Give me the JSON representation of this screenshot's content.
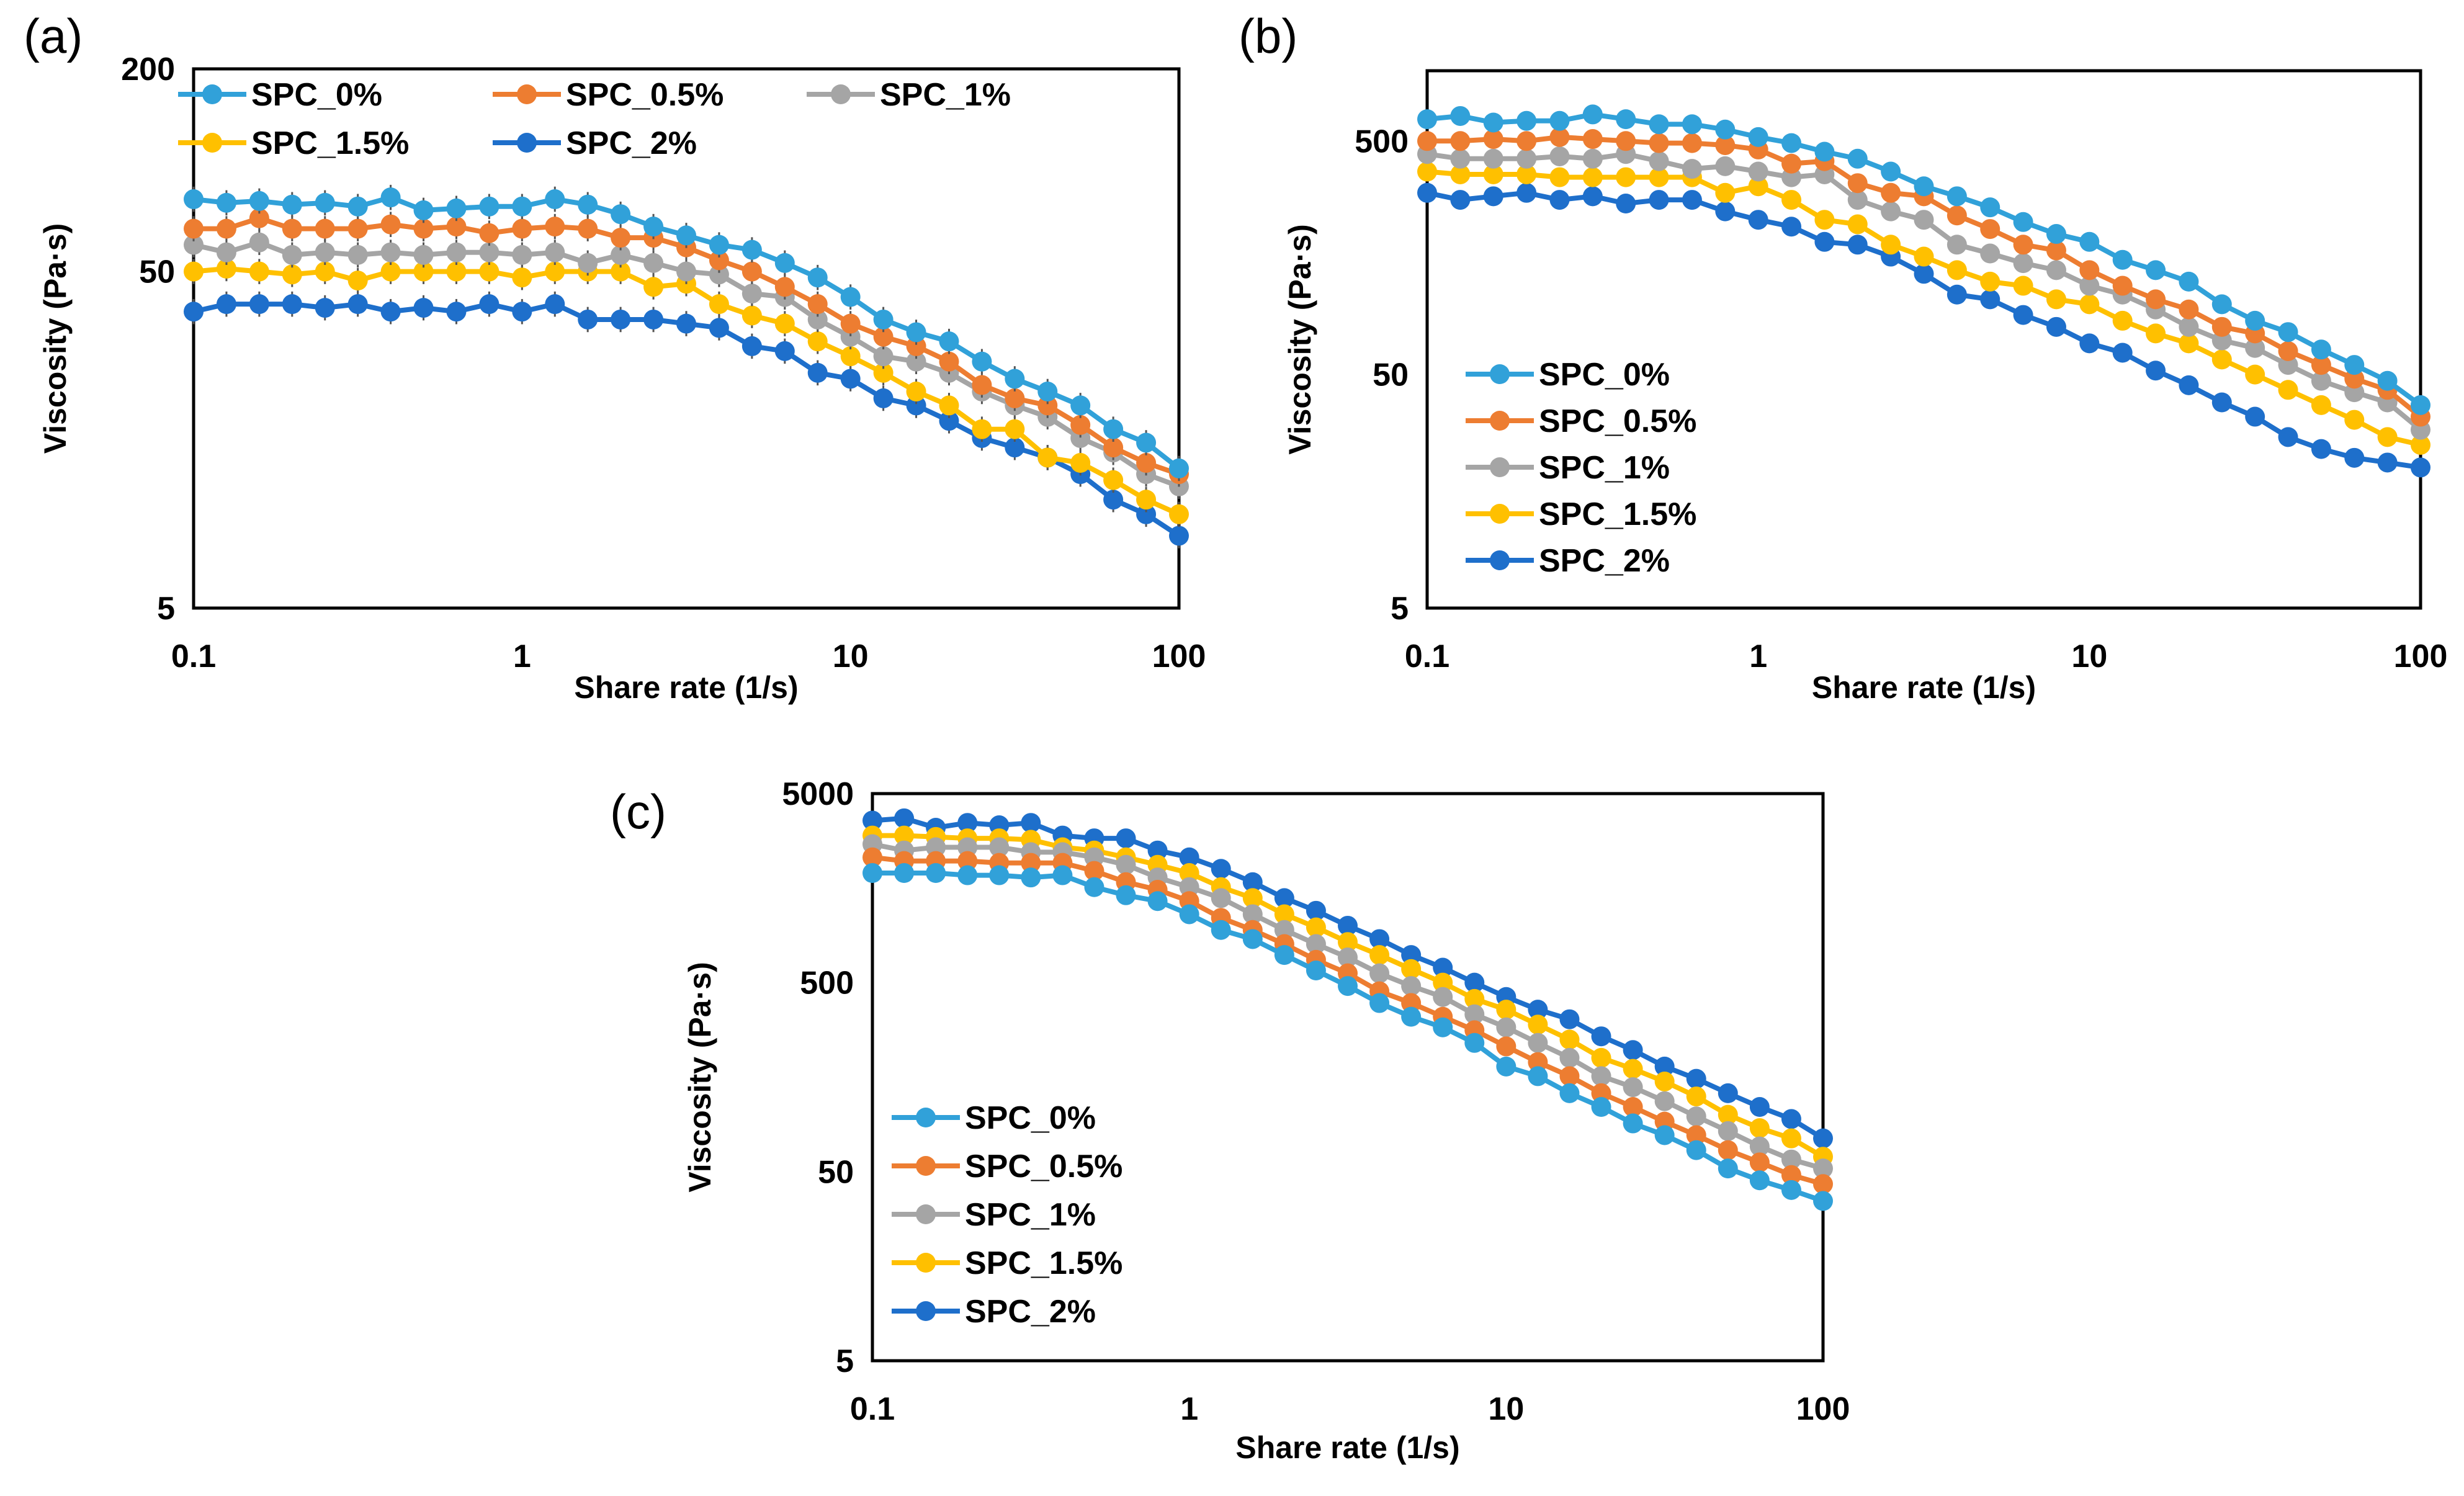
{
  "series_colors": {
    "SPC_0%": "#31A1D9",
    "SPC_0.5%": "#ED7D31",
    "SPC_1%": "#A5A5A5",
    "SPC_1.5%": "#FFC000",
    "SPC_2%": "#1E6FCB"
  },
  "chart_data": [
    {
      "panel": "(a)",
      "type": "line",
      "xscale": "log",
      "yscale": "log",
      "xlabel": "Share rate (1/s)",
      "ylabel": "Viscosity (Pa·s)",
      "xlim": [
        0.1,
        100
      ],
      "ylim": [
        5,
        200
      ],
      "xticks": [
        "0.1",
        "1",
        "10",
        "100"
      ],
      "yticks": [
        "5",
        "50",
        "200"
      ],
      "ytick_values": [
        5,
        50,
        200
      ],
      "legend": "top (two rows)",
      "x_description": "31 log-spaced shear rates from 0.1 to 100 1/s",
      "series": [
        {
          "name": "SPC_0%",
          "values": [
            82,
            80,
            81,
            79,
            80,
            78,
            83,
            76,
            77,
            78,
            78,
            82,
            79,
            74,
            68,
            64,
            60,
            58,
            53,
            48,
            42,
            36,
            33,
            31,
            27,
            24,
            22,
            20,
            17,
            15.5,
            13
          ]
        },
        {
          "name": "SPC_0.5%",
          "values": [
            67,
            67,
            72,
            67,
            67,
            67,
            69,
            67,
            68,
            65,
            67,
            68,
            67,
            63,
            63,
            59,
            54,
            50,
            45,
            40,
            35,
            32,
            30,
            27,
            23,
            21,
            20,
            17.5,
            15,
            13.5,
            12.5
          ]
        },
        {
          "name": "SPC_1%",
          "values": [
            60,
            57,
            61,
            56,
            57,
            56,
            57,
            56,
            57,
            57,
            56,
            57,
            53,
            56,
            53,
            50,
            49,
            43,
            42,
            36,
            32,
            28,
            27,
            25,
            22,
            20,
            18.5,
            16,
            14.5,
            12.5,
            11.5
          ]
        },
        {
          "name": "SPC_1.5%",
          "values": [
            50,
            51,
            50,
            49,
            50,
            47,
            50,
            50,
            50,
            50,
            48,
            50,
            50,
            50,
            45,
            46,
            40,
            37,
            35,
            31,
            28,
            25,
            22,
            20,
            17,
            17,
            14,
            13.5,
            12,
            10.5,
            9.5
          ]
        },
        {
          "name": "SPC_2%",
          "values": [
            38,
            40,
            40,
            40,
            39,
            40,
            38,
            39,
            38,
            40,
            38,
            40,
            36,
            36,
            36,
            35,
            34,
            30,
            29,
            25,
            24,
            21,
            20,
            18,
            16,
            15,
            14,
            12.5,
            10.5,
            9.5,
            8.2
          ]
        }
      ]
    },
    {
      "panel": "(b)",
      "type": "line",
      "xscale": "log",
      "yscale": "log",
      "xlabel": "Share rate (1/s)",
      "ylabel": "Viscosity (Pa·s)",
      "xlim": [
        0.1,
        100
      ],
      "ylim": [
        5,
        1000
      ],
      "xticks": [
        "0.1",
        "1",
        "10",
        "100"
      ],
      "yticks": [
        "5",
        "50",
        "500"
      ],
      "ytick_values": [
        5,
        50,
        500
      ],
      "legend": "lower-left (vertical)",
      "x_description": "31 log-spaced shear rates from 0.1 to 100 1/s",
      "series": [
        {
          "name": "SPC_0%",
          "values": [
            620,
            640,
            600,
            610,
            610,
            650,
            620,
            590,
            590,
            560,
            520,
            490,
            450,
            420,
            370,
            320,
            290,
            260,
            225,
            200,
            185,
            155,
            140,
            125,
            100,
            85,
            76,
            64,
            55,
            47,
            37
          ]
        },
        {
          "name": "SPC_0.5%",
          "values": [
            500,
            500,
            510,
            500,
            520,
            510,
            500,
            490,
            490,
            480,
            460,
            400,
            410,
            330,
            300,
            290,
            240,
            210,
            180,
            170,
            140,
            120,
            105,
            95,
            80,
            75,
            63,
            55,
            48,
            43,
            33
          ]
        },
        {
          "name": "SPC_1%",
          "values": [
            440,
            420,
            420,
            420,
            430,
            420,
            440,
            410,
            380,
            390,
            370,
            350,
            360,
            280,
            250,
            230,
            180,
            165,
            150,
            140,
            120,
            110,
            95,
            80,
            70,
            65,
            55,
            47,
            42,
            38,
            29
          ]
        },
        {
          "name": "SPC_1.5%",
          "values": [
            370,
            360,
            360,
            360,
            350,
            350,
            350,
            350,
            350,
            300,
            320,
            280,
            230,
            220,
            180,
            160,
            140,
            125,
            120,
            105,
            100,
            85,
            75,
            68,
            58,
            50,
            43,
            37,
            32,
            27,
            25
          ]
        },
        {
          "name": "SPC_2%",
          "values": [
            300,
            280,
            290,
            300,
            280,
            290,
            270,
            280,
            280,
            250,
            230,
            215,
            185,
            180,
            160,
            135,
            110,
            105,
            90,
            80,
            68,
            62,
            52,
            45,
            38,
            33,
            27,
            24,
            22,
            21,
            20
          ]
        }
      ]
    },
    {
      "panel": "(c)",
      "type": "line",
      "xscale": "log",
      "yscale": "log",
      "xlabel": "Share rate (1/s)",
      "ylabel": "Viscosity (Pa·s)",
      "xlim": [
        0.1,
        100
      ],
      "ylim": [
        5,
        5000
      ],
      "xticks": [
        "0.1",
        "1",
        "10",
        "100"
      ],
      "yticks": [
        "5",
        "50",
        "500",
        "5000"
      ],
      "ytick_values": [
        5,
        50,
        500,
        5000
      ],
      "legend": "lower-left (vertical)",
      "x_description": "31 log-spaced shear rates from 0.1 to 100 1/s",
      "series": [
        {
          "name": "SPC_0%",
          "values": [
            1900,
            1900,
            1900,
            1850,
            1850,
            1800,
            1850,
            1600,
            1450,
            1350,
            1150,
            950,
            850,
            700,
            580,
            480,
            390,
            330,
            290,
            240,
            180,
            160,
            130,
            110,
            90,
            78,
            65,
            52,
            45,
            40,
            35
          ]
        },
        {
          "name": "SPC_0.5%",
          "values": [
            2300,
            2200,
            2200,
            2200,
            2150,
            2150,
            2150,
            1950,
            1700,
            1550,
            1350,
            1100,
            950,
            800,
            660,
            560,
            450,
            390,
            330,
            280,
            230,
            190,
            160,
            130,
            110,
            92,
            78,
            65,
            56,
            48,
            43
          ]
        },
        {
          "name": "SPC_1%",
          "values": [
            2700,
            2500,
            2600,
            2600,
            2600,
            2450,
            2450,
            2300,
            2100,
            1800,
            1600,
            1400,
            1150,
            950,
            800,
            680,
            560,
            480,
            420,
            340,
            290,
            240,
            200,
            160,
            140,
            118,
            98,
            82,
            68,
            58,
            52
          ]
        },
        {
          "name": "SPC_1.5%",
          "values": [
            3000,
            3000,
            2950,
            2900,
            2900,
            2850,
            2600,
            2500,
            2300,
            2100,
            1900,
            1600,
            1400,
            1150,
            980,
            820,
            700,
            590,
            500,
            410,
            360,
            300,
            250,
            200,
            175,
            150,
            125,
            100,
            85,
            75,
            60
          ]
        },
        {
          "name": "SPC_2%",
          "values": [
            3600,
            3700,
            3300,
            3500,
            3400,
            3500,
            3000,
            2900,
            2900,
            2500,
            2300,
            2000,
            1700,
            1400,
            1200,
            1000,
            850,
            700,
            600,
            500,
            420,
            360,
            320,
            260,
            220,
            180,
            155,
            130,
            110,
            95,
            75
          ]
        }
      ]
    }
  ]
}
